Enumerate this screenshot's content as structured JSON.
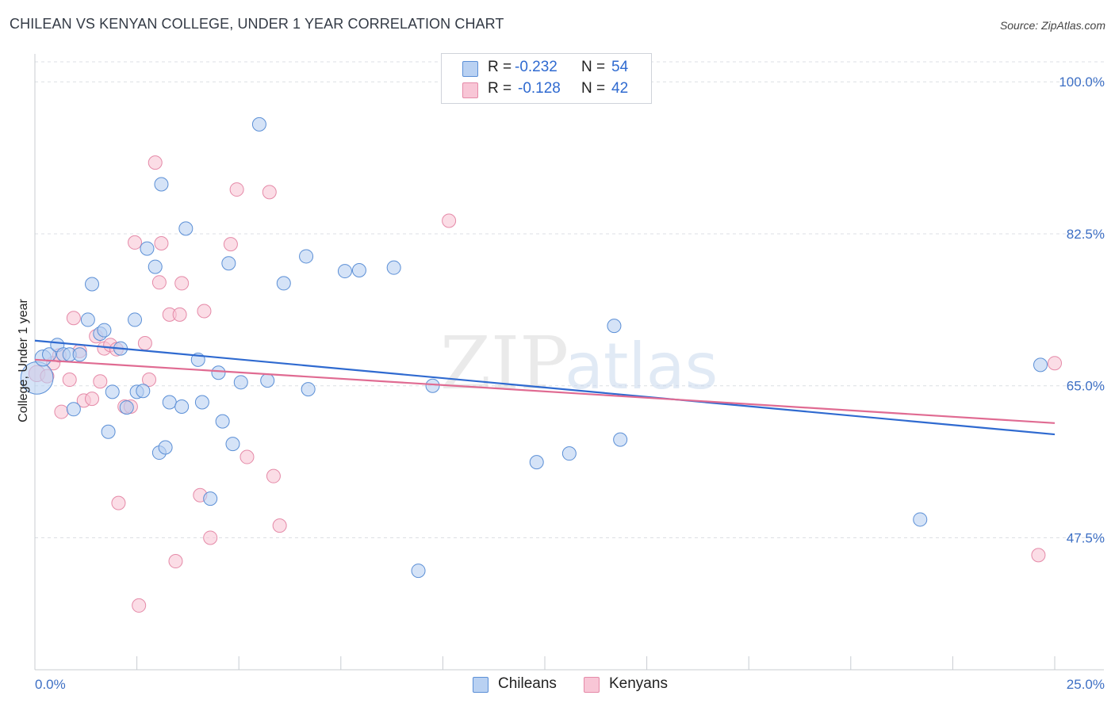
{
  "header": {
    "title": "CHILEAN VS KENYAN COLLEGE, UNDER 1 YEAR CORRELATION CHART",
    "source": "Source: ZipAtlas.com"
  },
  "watermark": {
    "zip": "ZIP",
    "atlas": "atlas"
  },
  "legend": {
    "r_label": "R =",
    "n_label": "N =",
    "chileans": {
      "r": "-0.232",
      "n": "54"
    },
    "kenyans": {
      "r": "-0.128",
      "n": "42"
    }
  },
  "colors": {
    "chileans_fill": "#b9d1f2",
    "chileans_stroke": "#5b8fd6",
    "chileans_line": "#2f6ad0",
    "kenyans_fill": "#f8c6d6",
    "kenyans_stroke": "#e58aa8",
    "kenyans_line": "#e06b92",
    "tick_label": "#3d6fc4"
  },
  "chart_data": {
    "type": "scatter",
    "title": "CHILEAN VS KENYAN COLLEGE, UNDER 1 YEAR CORRELATION CHART",
    "xlabel": "",
    "ylabel": "College, Under 1 year",
    "xlim": [
      0,
      25
    ],
    "ylim": [
      32.3,
      102.3
    ],
    "x_tick_labels": [
      "0.0%",
      "25.0%"
    ],
    "y_ticks": [
      47.5,
      65.0,
      82.5,
      100.0
    ],
    "y_tick_labels": [
      "47.5%",
      "65.0%",
      "82.5%",
      "100.0%"
    ],
    "grid": true,
    "legend_position": "top-center",
    "series": [
      {
        "name": "Chileans",
        "r": -0.232,
        "n": 54,
        "trend": {
          "x": [
            0,
            25
          ],
          "y": [
            70.2,
            59.4
          ]
        },
        "points": [
          {
            "x": 0.05,
            "y": 65.9,
            "s": 2.4
          },
          {
            "x": 0.2,
            "y": 68.2,
            "s": 1.2
          },
          {
            "x": 0.35,
            "y": 68.6,
            "s": 1
          },
          {
            "x": 0.55,
            "y": 69.7,
            "s": 1
          },
          {
            "x": 0.7,
            "y": 68.6,
            "s": 1
          },
          {
            "x": 0.85,
            "y": 68.6,
            "s": 1
          },
          {
            "x": 1.1,
            "y": 68.6,
            "s": 1
          },
          {
            "x": 0.95,
            "y": 62.3,
            "s": 1
          },
          {
            "x": 1.4,
            "y": 76.7,
            "s": 1
          },
          {
            "x": 1.3,
            "y": 72.6,
            "s": 1
          },
          {
            "x": 1.6,
            "y": 71.0,
            "s": 1
          },
          {
            "x": 1.7,
            "y": 71.4,
            "s": 1
          },
          {
            "x": 1.8,
            "y": 59.7,
            "s": 1
          },
          {
            "x": 1.9,
            "y": 64.3,
            "s": 1
          },
          {
            "x": 2.1,
            "y": 69.3,
            "s": 1
          },
          {
            "x": 2.25,
            "y": 62.5,
            "s": 1
          },
          {
            "x": 2.45,
            "y": 72.6,
            "s": 1
          },
          {
            "x": 2.5,
            "y": 64.3,
            "s": 1
          },
          {
            "x": 2.65,
            "y": 64.4,
            "s": 1
          },
          {
            "x": 2.75,
            "y": 80.8,
            "s": 1
          },
          {
            "x": 2.95,
            "y": 78.7,
            "s": 1
          },
          {
            "x": 3.1,
            "y": 88.2,
            "s": 1
          },
          {
            "x": 3.05,
            "y": 57.3,
            "s": 1
          },
          {
            "x": 3.2,
            "y": 57.9,
            "s": 1
          },
          {
            "x": 3.3,
            "y": 63.1,
            "s": 1
          },
          {
            "x": 3.6,
            "y": 62.6,
            "s": 1
          },
          {
            "x": 3.7,
            "y": 83.1,
            "s": 1
          },
          {
            "x": 4.0,
            "y": 68.0,
            "s": 1
          },
          {
            "x": 4.1,
            "y": 63.1,
            "s": 1
          },
          {
            "x": 4.3,
            "y": 52.0,
            "s": 1
          },
          {
            "x": 4.5,
            "y": 66.5,
            "s": 1
          },
          {
            "x": 4.6,
            "y": 60.9,
            "s": 1
          },
          {
            "x": 4.75,
            "y": 79.1,
            "s": 1
          },
          {
            "x": 4.85,
            "y": 58.3,
            "s": 1
          },
          {
            "x": 5.05,
            "y": 65.4,
            "s": 1
          },
          {
            "x": 5.5,
            "y": 95.1,
            "s": 1
          },
          {
            "x": 5.7,
            "y": 65.6,
            "s": 1
          },
          {
            "x": 6.1,
            "y": 76.8,
            "s": 1
          },
          {
            "x": 6.65,
            "y": 79.9,
            "s": 1
          },
          {
            "x": 6.7,
            "y": 64.6,
            "s": 1
          },
          {
            "x": 7.6,
            "y": 78.2,
            "s": 1
          },
          {
            "x": 7.95,
            "y": 78.3,
            "s": 1
          },
          {
            "x": 8.8,
            "y": 78.6,
            "s": 1
          },
          {
            "x": 9.4,
            "y": 43.7,
            "s": 1
          },
          {
            "x": 9.75,
            "y": 65.0,
            "s": 1
          },
          {
            "x": 12.3,
            "y": 56.2,
            "s": 1
          },
          {
            "x": 13.1,
            "y": 57.2,
            "s": 1
          },
          {
            "x": 14.2,
            "y": 71.9,
            "s": 1
          },
          {
            "x": 14.35,
            "y": 58.8,
            "s": 1
          },
          {
            "x": 21.7,
            "y": 49.6,
            "s": 1
          },
          {
            "x": 24.65,
            "y": 67.4,
            "s": 1
          }
        ]
      },
      {
        "name": "Kenyans",
        "r": -0.128,
        "n": 42,
        "trend": {
          "x": [
            0,
            25
          ],
          "y": [
            68.0,
            60.7
          ]
        },
        "points": [
          {
            "x": 0.05,
            "y": 66.4,
            "s": 1.2
          },
          {
            "x": 0.3,
            "y": 66.1,
            "s": 1
          },
          {
            "x": 0.45,
            "y": 67.6,
            "s": 1
          },
          {
            "x": 0.6,
            "y": 68.5,
            "s": 1
          },
          {
            "x": 0.65,
            "y": 62.0,
            "s": 1
          },
          {
            "x": 0.85,
            "y": 65.7,
            "s": 1
          },
          {
            "x": 0.95,
            "y": 72.8,
            "s": 1
          },
          {
            "x": 1.1,
            "y": 69.0,
            "s": 1
          },
          {
            "x": 1.2,
            "y": 63.3,
            "s": 1
          },
          {
            "x": 1.4,
            "y": 63.5,
            "s": 1
          },
          {
            "x": 1.5,
            "y": 70.7,
            "s": 1
          },
          {
            "x": 1.6,
            "y": 65.5,
            "s": 1
          },
          {
            "x": 1.7,
            "y": 69.3,
            "s": 1
          },
          {
            "x": 1.85,
            "y": 69.7,
            "s": 1
          },
          {
            "x": 2.0,
            "y": 69.2,
            "s": 1
          },
          {
            "x": 2.05,
            "y": 51.5,
            "s": 1
          },
          {
            "x": 2.2,
            "y": 62.6,
            "s": 1
          },
          {
            "x": 2.35,
            "y": 62.6,
            "s": 1
          },
          {
            "x": 2.45,
            "y": 81.5,
            "s": 1
          },
          {
            "x": 2.55,
            "y": 39.7,
            "s": 1
          },
          {
            "x": 2.7,
            "y": 69.9,
            "s": 1
          },
          {
            "x": 2.8,
            "y": 65.7,
            "s": 1
          },
          {
            "x": 2.95,
            "y": 90.7,
            "s": 1
          },
          {
            "x": 3.05,
            "y": 76.9,
            "s": 1
          },
          {
            "x": 3.1,
            "y": 81.4,
            "s": 1
          },
          {
            "x": 3.3,
            "y": 73.2,
            "s": 1
          },
          {
            "x": 3.45,
            "y": 44.8,
            "s": 1
          },
          {
            "x": 3.55,
            "y": 73.2,
            "s": 1
          },
          {
            "x": 3.6,
            "y": 76.8,
            "s": 1
          },
          {
            "x": 4.05,
            "y": 52.4,
            "s": 1
          },
          {
            "x": 4.15,
            "y": 73.6,
            "s": 1
          },
          {
            "x": 4.3,
            "y": 47.5,
            "s": 1
          },
          {
            "x": 4.8,
            "y": 81.3,
            "s": 1
          },
          {
            "x": 4.95,
            "y": 87.6,
            "s": 1
          },
          {
            "x": 5.2,
            "y": 56.8,
            "s": 1
          },
          {
            "x": 5.75,
            "y": 87.3,
            "s": 1
          },
          {
            "x": 5.85,
            "y": 54.6,
            "s": 1
          },
          {
            "x": 6.0,
            "y": 48.9,
            "s": 1
          },
          {
            "x": 10.15,
            "y": 84.0,
            "s": 1
          },
          {
            "x": 24.6,
            "y": 45.5,
            "s": 1
          },
          {
            "x": 25.0,
            "y": 67.6,
            "s": 1
          }
        ]
      }
    ]
  }
}
